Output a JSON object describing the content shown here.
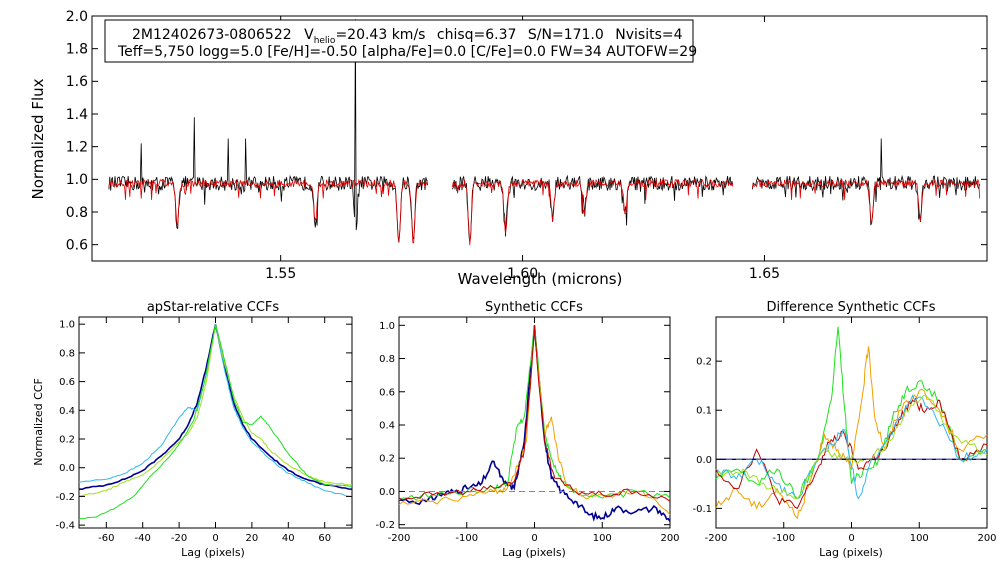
{
  "header": {
    "star_id": "2M12402673-0806522",
    "v_symbol": "V",
    "v_sub": "helio",
    "v_value": "=20.43 km/s",
    "chisq": "chisq=6.37",
    "snr": "S/N=171.0",
    "nvisits": "Nvisits=4",
    "params_line": "Teff=5,750 logg=5.0 [Fe/H]=-0.50 [alpha/Fe]=0.0 [C/Fe]=0.0 FW=34 AUTOFW=29"
  },
  "colors": {
    "observed": "#000000",
    "model": "#e00000",
    "ccf_navy": "#000090",
    "ccf_cyan": "#30b8f0",
    "ccf_green": "#20e020",
    "ccf_lime": "#a0e020",
    "ccf_orange": "#f0a000",
    "ccf_red": "#c00000",
    "zero_line": "#888888"
  },
  "chart_data": [
    {
      "type": "line",
      "title": "",
      "xlabel": "Wavelength (microns)",
      "ylabel": "Normalized Flux",
      "xlim": [
        1.511,
        1.696
      ],
      "ylim": [
        0.5,
        2.0
      ],
      "yticks": [
        "0.6",
        "0.8",
        "1.0",
        "1.2",
        "1.4",
        "1.6",
        "1.8",
        "2.0"
      ],
      "xticks": [
        "1.55",
        "1.60",
        "1.65"
      ],
      "segments": [
        [
          1.5145,
          1.5805
        ],
        [
          1.5855,
          1.6435
        ],
        [
          1.6475,
          1.6945
        ]
      ],
      "series": [
        {
          "name": "observed",
          "continuum": 0.975,
          "emission_spikes": [
            [
              1.5212,
              1.22
            ],
            [
              1.5322,
              1.38
            ],
            [
              1.5392,
              1.25
            ],
            [
              1.5427,
              1.25
            ],
            [
              1.5655,
              1.98
            ],
            [
              1.6742,
              1.25
            ]
          ],
          "absorption_lines": [
            [
              1.5286,
              0.72
            ],
            [
              1.5572,
              0.74
            ],
            [
              1.5655,
              0.66
            ],
            [
              1.5744,
              0.62
            ],
            [
              1.5774,
              0.61
            ],
            [
              1.5891,
              0.62
            ],
            [
              1.5965,
              0.69
            ],
            [
              1.6062,
              0.75
            ],
            [
              1.6128,
              0.8
            ],
            [
              1.6212,
              0.78
            ],
            [
              1.6721,
              0.73
            ],
            [
              1.6822,
              0.76
            ]
          ]
        },
        {
          "name": "model",
          "continuum": 0.975,
          "absorption_lines": [
            [
              1.5286,
              0.72
            ],
            [
              1.5572,
              0.74
            ],
            [
              1.5744,
              0.62
            ],
            [
              1.5774,
              0.61
            ],
            [
              1.5891,
              0.62
            ],
            [
              1.5965,
              0.69
            ],
            [
              1.6062,
              0.75
            ],
            [
              1.6128,
              0.8
            ],
            [
              1.6212,
              0.78
            ],
            [
              1.6721,
              0.73
            ],
            [
              1.6822,
              0.76
            ]
          ]
        }
      ]
    },
    {
      "type": "line",
      "title": "apStar-relative CCFs",
      "xlabel": "Lag (pixels)",
      "ylabel": "Normalized CCF",
      "xlim": [
        -75,
        75
      ],
      "ylim": [
        -0.42,
        1.05
      ],
      "xticks": [
        "-60",
        "-40",
        "-20",
        "0",
        "20",
        "40",
        "60"
      ],
      "yticks": [
        "-0.4",
        "-0.2",
        "0.0",
        "0.2",
        "0.4",
        "0.6",
        "0.8",
        "1.0"
      ],
      "series": [
        {
          "name": "navy",
          "x": [
            -75,
            -60,
            -50,
            -40,
            -30,
            -20,
            -15,
            -10,
            -5,
            0,
            5,
            10,
            15,
            20,
            30,
            40,
            50,
            60,
            75
          ],
          "y": [
            -0.15,
            -0.12,
            -0.08,
            -0.02,
            0.08,
            0.2,
            0.3,
            0.45,
            0.7,
            1.0,
            0.7,
            0.45,
            0.3,
            0.2,
            0.08,
            -0.02,
            -0.08,
            -0.12,
            -0.15
          ]
        },
        {
          "name": "cyan",
          "x": [
            -75,
            -60,
            -50,
            -40,
            -30,
            -20,
            -15,
            -10,
            -5,
            0,
            5,
            10,
            15,
            20,
            30,
            40,
            50,
            60,
            75
          ],
          "y": [
            -0.1,
            -0.08,
            -0.04,
            0.03,
            0.15,
            0.35,
            0.42,
            0.4,
            0.65,
            1.0,
            0.68,
            0.42,
            0.28,
            0.18,
            0.06,
            -0.04,
            -0.1,
            -0.16,
            -0.2
          ]
        },
        {
          "name": "lime",
          "x": [
            -75,
            -60,
            -50,
            -40,
            -30,
            -20,
            -15,
            -10,
            -5,
            0,
            5,
            10,
            15,
            20,
            25,
            30,
            40,
            50,
            60,
            75
          ],
          "y": [
            -0.2,
            -0.16,
            -0.1,
            -0.05,
            0.05,
            0.18,
            0.24,
            0.35,
            0.6,
            1.0,
            0.72,
            0.5,
            0.35,
            0.24,
            0.2,
            0.12,
            0.02,
            -0.05,
            -0.1,
            -0.12
          ]
        },
        {
          "name": "green",
          "x": [
            -75,
            -65,
            -55,
            -45,
            -35,
            -25,
            -18,
            -12,
            -6,
            0,
            5,
            10,
            15,
            20,
            25,
            30,
            40,
            50,
            60,
            75
          ],
          "y": [
            -0.36,
            -0.34,
            -0.28,
            -0.2,
            -0.05,
            0.08,
            0.2,
            0.33,
            0.6,
            1.0,
            0.75,
            0.48,
            0.32,
            0.3,
            0.36,
            0.28,
            0.1,
            -0.05,
            -0.12,
            -0.13
          ]
        }
      ]
    },
    {
      "type": "line",
      "title": "Synthetic CCFs",
      "xlabel": "Lag (pixels)",
      "ylabel": "",
      "xlim": [
        -200,
        200
      ],
      "ylim": [
        -0.22,
        1.05
      ],
      "xticks": [
        "-200",
        "-100",
        "0",
        "100",
        "200"
      ],
      "yticks": [
        "-0.2",
        "0.0",
        "0.2",
        "0.4",
        "0.6",
        "0.8",
        "1.0"
      ],
      "zero_dashed_y": 0.0,
      "series": [
        {
          "name": "navy",
          "x": [
            -200,
            -160,
            -140,
            -120,
            -100,
            -80,
            -60,
            -45,
            -30,
            -15,
            0,
            15,
            25,
            40,
            60,
            80,
            100,
            120,
            150,
            180,
            200
          ],
          "y": [
            -0.05,
            -0.06,
            -0.02,
            0.0,
            0.02,
            0.04,
            0.18,
            0.05,
            0.02,
            0.3,
            1.0,
            0.3,
            0.08,
            0.0,
            -0.06,
            -0.14,
            -0.16,
            -0.1,
            -0.12,
            -0.1,
            -0.18
          ]
        },
        {
          "name": "green",
          "x": [
            -200,
            -150,
            -100,
            -60,
            -40,
            -25,
            -15,
            -5,
            0,
            5,
            15,
            25,
            40,
            60,
            100,
            150,
            200
          ],
          "y": [
            -0.05,
            -0.02,
            0.0,
            0.02,
            0.05,
            0.4,
            0.45,
            0.8,
            1.0,
            0.8,
            0.35,
            0.2,
            0.06,
            0.0,
            -0.04,
            0.0,
            -0.04
          ]
        },
        {
          "name": "orange",
          "x": [
            -200,
            -150,
            -100,
            -60,
            -40,
            -25,
            -12,
            -5,
            0,
            5,
            15,
            25,
            35,
            50,
            80,
            120,
            160,
            200
          ],
          "y": [
            -0.08,
            -0.06,
            -0.03,
            0.0,
            0.02,
            0.15,
            0.3,
            0.7,
            1.0,
            0.75,
            0.35,
            0.45,
            0.2,
            0.02,
            -0.04,
            -0.02,
            0.0,
            -0.14
          ]
        },
        {
          "name": "red",
          "x": [
            -200,
            -150,
            -100,
            -60,
            -30,
            -15,
            -5,
            0,
            5,
            15,
            30,
            60,
            100,
            150,
            200
          ],
          "y": [
            -0.04,
            -0.02,
            0.0,
            0.02,
            0.06,
            0.25,
            0.7,
            1.0,
            0.72,
            0.3,
            0.08,
            0.0,
            -0.02,
            0.0,
            -0.06
          ]
        }
      ]
    },
    {
      "type": "line",
      "title": "Difference Synthetic CCFs",
      "xlabel": "Lag (pixels)",
      "ylabel": "",
      "xlim": [
        -200,
        200
      ],
      "ylim": [
        -0.14,
        0.29
      ],
      "xticks": [
        "-200",
        "-100",
        "0",
        "100",
        "200"
      ],
      "yticks": [
        "-0.1",
        "0.0",
        "0.1",
        "0.2"
      ],
      "zero_dashed_y": 0.0,
      "series": [
        {
          "name": "green",
          "x": [
            -200,
            -170,
            -140,
            -110,
            -80,
            -50,
            -30,
            -20,
            -10,
            0,
            20,
            40,
            60,
            80,
            100,
            130,
            160,
            200
          ],
          "y": [
            -0.04,
            -0.02,
            -0.05,
            -0.02,
            -0.08,
            0.0,
            0.12,
            0.27,
            0.1,
            -0.05,
            -0.02,
            0.0,
            0.08,
            0.14,
            0.16,
            0.12,
            0.0,
            0.02
          ]
        },
        {
          "name": "orange",
          "x": [
            -200,
            -170,
            -140,
            -110,
            -80,
            -60,
            -40,
            -20,
            0,
            15,
            25,
            35,
            50,
            70,
            100,
            130,
            160,
            200
          ],
          "y": [
            -0.1,
            -0.06,
            -0.1,
            -0.06,
            -0.12,
            -0.04,
            0.05,
            0.02,
            -0.02,
            0.12,
            0.23,
            0.08,
            0.02,
            0.1,
            0.14,
            0.1,
            0.02,
            0.05
          ]
        },
        {
          "name": "red",
          "x": [
            -200,
            -170,
            -140,
            -110,
            -80,
            -50,
            -30,
            -10,
            10,
            30,
            50,
            70,
            90,
            110,
            130,
            160,
            200
          ],
          "y": [
            -0.02,
            -0.06,
            0.02,
            -0.08,
            -0.1,
            -0.02,
            0.04,
            0.05,
            -0.02,
            0.0,
            0.02,
            0.08,
            0.12,
            0.1,
            0.12,
            0.0,
            0.03
          ]
        },
        {
          "name": "cyan",
          "x": [
            -200,
            -170,
            -140,
            -110,
            -80,
            -50,
            -30,
            -10,
            10,
            30,
            60,
            90,
            120,
            160,
            200
          ],
          "y": [
            -0.02,
            -0.04,
            0.0,
            -0.05,
            -0.08,
            0.0,
            0.03,
            0.06,
            -0.08,
            0.0,
            0.05,
            0.13,
            0.1,
            0.0,
            0.02
          ]
        },
        {
          "name": "lime",
          "x": [
            -200,
            -160,
            -120,
            -80,
            -40,
            -10,
            20,
            50,
            80,
            110,
            150,
            200
          ],
          "y": [
            -0.03,
            -0.02,
            -0.06,
            -0.08,
            0.02,
            0.0,
            0.0,
            0.02,
            0.1,
            0.13,
            0.05,
            0.01
          ]
        }
      ]
    }
  ]
}
